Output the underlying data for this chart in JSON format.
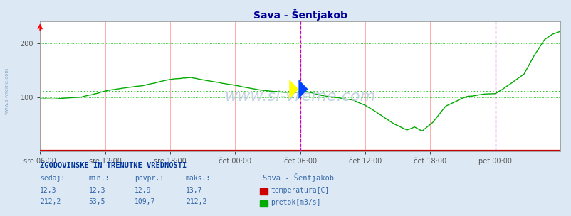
{
  "title": "Sava - Šentjakob",
  "bg_color": "#dce9f5",
  "plot_bg_color": "#ffffff",
  "grid_color_v": "#ffbbbb",
  "grid_color_h": "#00dd00",
  "x_labels": [
    "sre 06:00",
    "sre 12:00",
    "sre 18:00",
    "čet 00:00",
    "čet 06:00",
    "čet 12:00",
    "čet 18:00",
    "pet 00:00"
  ],
  "x_ticks_norm": [
    0.0,
    0.125,
    0.25,
    0.375,
    0.5,
    0.625,
    0.75,
    0.875
  ],
  "ymin": 0,
  "ymax": 240,
  "yticks": [
    100,
    200
  ],
  "avg_line": 109.7,
  "temp_color": "#cc0000",
  "flow_color": "#00aa00",
  "magenta_line_x1": 0.5,
  "magenta_line_x2": 0.875,
  "title_color": "#000099",
  "text_color": "#3366aa",
  "footer_title_color": "#003399",
  "watermark": "www.si-vreme.com",
  "watermark_color": "#bbccdd",
  "footer_title": "ZGODOVINSKE IN TRENUTNE VREDNOSTI",
  "col_headers": [
    "sedaj:",
    "min.:",
    "povpr.:",
    "maks.:"
  ],
  "col_values_temp": [
    "12,3",
    "12,3",
    "12,9",
    "13,7"
  ],
  "col_values_flow": [
    "212,2",
    "53,5",
    "109,7",
    "212,2"
  ],
  "legend_station": "Sava - Šentjakob",
  "legend_temp": "temperatura[C]",
  "legend_flow": "pretok[m3/s]"
}
